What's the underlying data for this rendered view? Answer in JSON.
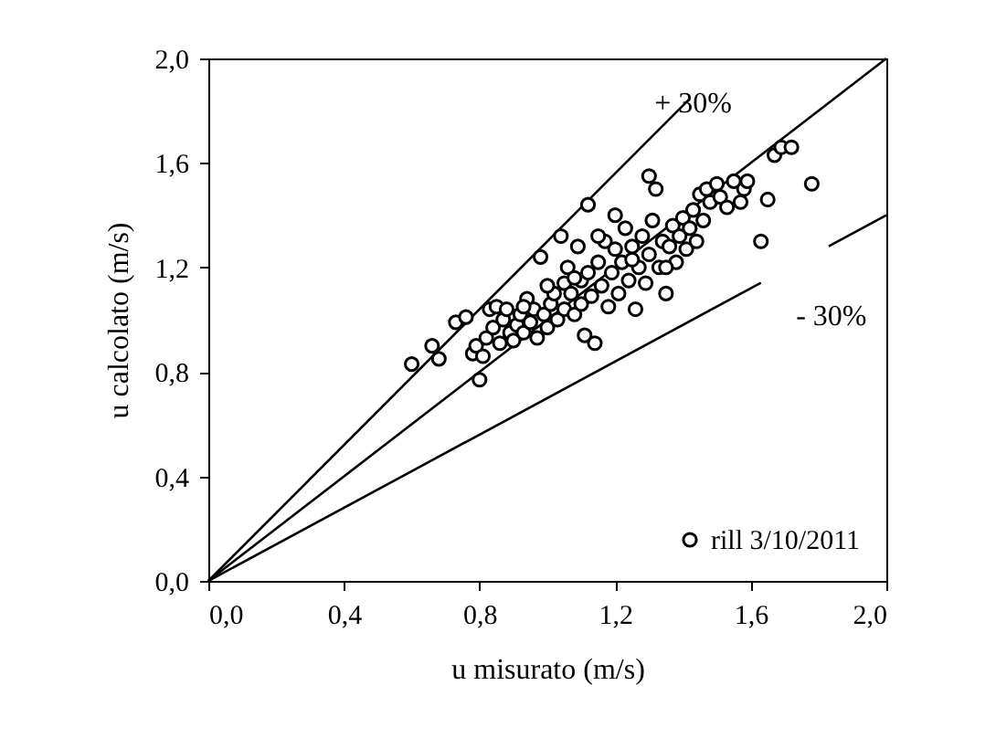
{
  "chart_data": {
    "type": "scatter",
    "xlabel": "u misurato (m/s)",
    "ylabel": "u calcolato (m/s)",
    "xlim": [
      0,
      2
    ],
    "ylim": [
      0,
      2
    ],
    "xticks": [
      {
        "value": 0,
        "label": "0,0"
      },
      {
        "value": 0.4,
        "label": "0,4"
      },
      {
        "value": 0.8,
        "label": "0,8"
      },
      {
        "value": 1.2,
        "label": "1,2"
      },
      {
        "value": 1.6,
        "label": "1,6"
      },
      {
        "value": 2,
        "label": "2,0"
      }
    ],
    "yticks": [
      {
        "value": 0,
        "label": "0,0"
      },
      {
        "value": 0.4,
        "label": "0,4"
      },
      {
        "value": 0.8,
        "label": "0,8"
      },
      {
        "value": 1.2,
        "label": "1,2"
      },
      {
        "value": 1.6,
        "label": "1,6"
      },
      {
        "value": 2,
        "label": "2,0"
      }
    ],
    "grid": false,
    "legend": "bottom right",
    "annotations": [
      {
        "text": "+ 30%",
        "x": 1.43,
        "y": 1.83
      },
      "- 30%"
    ],
    "series": [
      {
        "type": "line",
        "color": "#000000",
        "marker": "none",
        "x": [
          0,
          2
        ],
        "values": [
          0,
          2
        ]
      },
      {
        "type": "line",
        "color": "#000000",
        "marker": "none",
        "x": [
          0,
          1.42
        ],
        "values": [
          0,
          1.846
        ]
      },
      {
        "type": "line",
        "color": "#000000",
        "marker": "none",
        "x": [
          0,
          1.63,
          1.73,
          1.83,
          2
        ],
        "values": [
          0,
          1.141,
          null,
          1.281,
          1.4
        ]
      },
      {
        "name": "rill 3/10/2011",
        "color": "#000000",
        "marker": "circle",
        "x": [
          0.6,
          0.66,
          0.68,
          0.73,
          0.76,
          0.78,
          0.79,
          0.8,
          0.81,
          0.82,
          0.83,
          0.84,
          0.85,
          0.86,
          0.87,
          0.88,
          0.89,
          0.9,
          0.91,
          0.92,
          0.93,
          0.94,
          0.95,
          0.96,
          0.97,
          0.98,
          0.99,
          1.0,
          1.01,
          1.02,
          1.03,
          1.04,
          1.05,
          1.05,
          1.06,
          1.07,
          1.08,
          1.09,
          1.1,
          1.1,
          1.11,
          1.12,
          1.12,
          1.13,
          1.14,
          1.15,
          1.16,
          1.17,
          1.18,
          1.19,
          1.2,
          1.21,
          1.22,
          1.23,
          1.24,
          1.25,
          1.26,
          1.27,
          1.28,
          1.29,
          1.3,
          1.3,
          1.31,
          1.32,
          1.33,
          1.34,
          1.35,
          1.36,
          1.37,
          1.38,
          1.39,
          1.4,
          1.41,
          1.42,
          1.43,
          1.44,
          1.45,
          1.46,
          1.47,
          1.48,
          1.5,
          1.51,
          1.53,
          1.55,
          1.57,
          1.58,
          1.63,
          1.65,
          1.67,
          1.69,
          1.72,
          1.78,
          1.59,
          1.15,
          1.2,
          1.25,
          1.35,
          1.0,
          0.93,
          1.08
        ],
        "values": [
          0.83,
          0.9,
          0.85,
          0.99,
          1.01,
          0.87,
          0.9,
          0.77,
          0.86,
          0.93,
          1.04,
          0.97,
          1.05,
          0.91,
          1.0,
          1.04,
          0.95,
          0.92,
          0.98,
          1.02,
          0.95,
          1.08,
          0.99,
          1.04,
          0.93,
          1.24,
          1.02,
          0.97,
          1.06,
          1.1,
          1.0,
          1.32,
          1.14,
          1.04,
          1.2,
          1.1,
          1.02,
          1.28,
          1.15,
          1.06,
          0.94,
          1.18,
          1.44,
          1.09,
          0.91,
          1.22,
          1.13,
          1.3,
          1.05,
          1.18,
          1.27,
          1.1,
          1.22,
          1.35,
          1.15,
          1.28,
          1.04,
          1.2,
          1.32,
          1.14,
          1.55,
          1.25,
          1.38,
          1.5,
          1.2,
          1.3,
          1.1,
          1.28,
          1.36,
          1.22,
          1.32,
          1.39,
          1.27,
          1.35,
          1.42,
          1.3,
          1.48,
          1.38,
          1.5,
          1.45,
          1.52,
          1.47,
          1.43,
          1.53,
          1.45,
          1.5,
          1.3,
          1.46,
          1.63,
          1.66,
          1.66,
          1.52,
          1.53,
          1.32,
          1.4,
          1.23,
          1.2,
          1.13,
          1.05,
          1.16
        ]
      }
    ]
  }
}
